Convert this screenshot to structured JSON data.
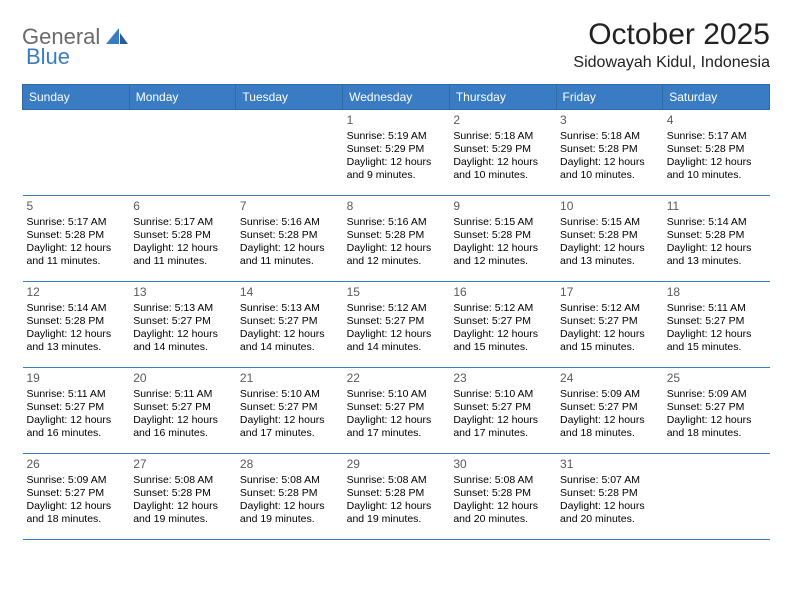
{
  "brand": {
    "word1": "General",
    "word2": "Blue"
  },
  "title": "October 2025",
  "location": "Sidowayah Kidul, Indonesia",
  "colors": {
    "header_bg": "#3a7cc4",
    "header_text": "#ffffff",
    "cell_border": "#3a7cc4",
    "daynum": "#5a5a5a",
    "body_text": "#000000",
    "brand_gray": "#6b6b6b"
  },
  "dow": [
    "Sunday",
    "Monday",
    "Tuesday",
    "Wednesday",
    "Thursday",
    "Friday",
    "Saturday"
  ],
  "weeks": [
    [
      null,
      null,
      null,
      {
        "d": "1",
        "sr": "Sunrise: 5:19 AM",
        "ss": "Sunset: 5:29 PM",
        "dl1": "Daylight: 12 hours",
        "dl2": "and 9 minutes."
      },
      {
        "d": "2",
        "sr": "Sunrise: 5:18 AM",
        "ss": "Sunset: 5:29 PM",
        "dl1": "Daylight: 12 hours",
        "dl2": "and 10 minutes."
      },
      {
        "d": "3",
        "sr": "Sunrise: 5:18 AM",
        "ss": "Sunset: 5:28 PM",
        "dl1": "Daylight: 12 hours",
        "dl2": "and 10 minutes."
      },
      {
        "d": "4",
        "sr": "Sunrise: 5:17 AM",
        "ss": "Sunset: 5:28 PM",
        "dl1": "Daylight: 12 hours",
        "dl2": "and 10 minutes."
      }
    ],
    [
      {
        "d": "5",
        "sr": "Sunrise: 5:17 AM",
        "ss": "Sunset: 5:28 PM",
        "dl1": "Daylight: 12 hours",
        "dl2": "and 11 minutes."
      },
      {
        "d": "6",
        "sr": "Sunrise: 5:17 AM",
        "ss": "Sunset: 5:28 PM",
        "dl1": "Daylight: 12 hours",
        "dl2": "and 11 minutes."
      },
      {
        "d": "7",
        "sr": "Sunrise: 5:16 AM",
        "ss": "Sunset: 5:28 PM",
        "dl1": "Daylight: 12 hours",
        "dl2": "and 11 minutes."
      },
      {
        "d": "8",
        "sr": "Sunrise: 5:16 AM",
        "ss": "Sunset: 5:28 PM",
        "dl1": "Daylight: 12 hours",
        "dl2": "and 12 minutes."
      },
      {
        "d": "9",
        "sr": "Sunrise: 5:15 AM",
        "ss": "Sunset: 5:28 PM",
        "dl1": "Daylight: 12 hours",
        "dl2": "and 12 minutes."
      },
      {
        "d": "10",
        "sr": "Sunrise: 5:15 AM",
        "ss": "Sunset: 5:28 PM",
        "dl1": "Daylight: 12 hours",
        "dl2": "and 13 minutes."
      },
      {
        "d": "11",
        "sr": "Sunrise: 5:14 AM",
        "ss": "Sunset: 5:28 PM",
        "dl1": "Daylight: 12 hours",
        "dl2": "and 13 minutes."
      }
    ],
    [
      {
        "d": "12",
        "sr": "Sunrise: 5:14 AM",
        "ss": "Sunset: 5:28 PM",
        "dl1": "Daylight: 12 hours",
        "dl2": "and 13 minutes."
      },
      {
        "d": "13",
        "sr": "Sunrise: 5:13 AM",
        "ss": "Sunset: 5:27 PM",
        "dl1": "Daylight: 12 hours",
        "dl2": "and 14 minutes."
      },
      {
        "d": "14",
        "sr": "Sunrise: 5:13 AM",
        "ss": "Sunset: 5:27 PM",
        "dl1": "Daylight: 12 hours",
        "dl2": "and 14 minutes."
      },
      {
        "d": "15",
        "sr": "Sunrise: 5:12 AM",
        "ss": "Sunset: 5:27 PM",
        "dl1": "Daylight: 12 hours",
        "dl2": "and 14 minutes."
      },
      {
        "d": "16",
        "sr": "Sunrise: 5:12 AM",
        "ss": "Sunset: 5:27 PM",
        "dl1": "Daylight: 12 hours",
        "dl2": "and 15 minutes."
      },
      {
        "d": "17",
        "sr": "Sunrise: 5:12 AM",
        "ss": "Sunset: 5:27 PM",
        "dl1": "Daylight: 12 hours",
        "dl2": "and 15 minutes."
      },
      {
        "d": "18",
        "sr": "Sunrise: 5:11 AM",
        "ss": "Sunset: 5:27 PM",
        "dl1": "Daylight: 12 hours",
        "dl2": "and 15 minutes."
      }
    ],
    [
      {
        "d": "19",
        "sr": "Sunrise: 5:11 AM",
        "ss": "Sunset: 5:27 PM",
        "dl1": "Daylight: 12 hours",
        "dl2": "and 16 minutes."
      },
      {
        "d": "20",
        "sr": "Sunrise: 5:11 AM",
        "ss": "Sunset: 5:27 PM",
        "dl1": "Daylight: 12 hours",
        "dl2": "and 16 minutes."
      },
      {
        "d": "21",
        "sr": "Sunrise: 5:10 AM",
        "ss": "Sunset: 5:27 PM",
        "dl1": "Daylight: 12 hours",
        "dl2": "and 17 minutes."
      },
      {
        "d": "22",
        "sr": "Sunrise: 5:10 AM",
        "ss": "Sunset: 5:27 PM",
        "dl1": "Daylight: 12 hours",
        "dl2": "and 17 minutes."
      },
      {
        "d": "23",
        "sr": "Sunrise: 5:10 AM",
        "ss": "Sunset: 5:27 PM",
        "dl1": "Daylight: 12 hours",
        "dl2": "and 17 minutes."
      },
      {
        "d": "24",
        "sr": "Sunrise: 5:09 AM",
        "ss": "Sunset: 5:27 PM",
        "dl1": "Daylight: 12 hours",
        "dl2": "and 18 minutes."
      },
      {
        "d": "25",
        "sr": "Sunrise: 5:09 AM",
        "ss": "Sunset: 5:27 PM",
        "dl1": "Daylight: 12 hours",
        "dl2": "and 18 minutes."
      }
    ],
    [
      {
        "d": "26",
        "sr": "Sunrise: 5:09 AM",
        "ss": "Sunset: 5:27 PM",
        "dl1": "Daylight: 12 hours",
        "dl2": "and 18 minutes."
      },
      {
        "d": "27",
        "sr": "Sunrise: 5:08 AM",
        "ss": "Sunset: 5:28 PM",
        "dl1": "Daylight: 12 hours",
        "dl2": "and 19 minutes."
      },
      {
        "d": "28",
        "sr": "Sunrise: 5:08 AM",
        "ss": "Sunset: 5:28 PM",
        "dl1": "Daylight: 12 hours",
        "dl2": "and 19 minutes."
      },
      {
        "d": "29",
        "sr": "Sunrise: 5:08 AM",
        "ss": "Sunset: 5:28 PM",
        "dl1": "Daylight: 12 hours",
        "dl2": "and 19 minutes."
      },
      {
        "d": "30",
        "sr": "Sunrise: 5:08 AM",
        "ss": "Sunset: 5:28 PM",
        "dl1": "Daylight: 12 hours",
        "dl2": "and 20 minutes."
      },
      {
        "d": "31",
        "sr": "Sunrise: 5:07 AM",
        "ss": "Sunset: 5:28 PM",
        "dl1": "Daylight: 12 hours",
        "dl2": "and 20 minutes."
      },
      null
    ]
  ]
}
